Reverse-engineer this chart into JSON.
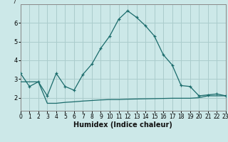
{
  "xlabel": "Humidex (Indice chaleur)",
  "bg_color": "#cce8e8",
  "grid_color": "#aacccc",
  "line_color": "#1a6b6b",
  "line1_x": [
    0,
    1,
    2,
    3,
    4,
    5,
    6,
    7,
    8,
    9,
    10,
    11,
    12,
    13,
    14,
    15,
    16,
    17,
    18,
    19,
    20,
    21,
    22,
    23
  ],
  "line1_y": [
    3.3,
    2.6,
    2.85,
    2.1,
    3.3,
    2.6,
    2.4,
    3.25,
    3.8,
    4.65,
    5.3,
    6.2,
    6.65,
    6.3,
    5.85,
    5.3,
    4.3,
    3.75,
    2.65,
    2.6,
    2.1,
    2.15,
    2.2,
    2.1
  ],
  "line2_x": [
    0,
    1,
    2,
    3,
    4,
    5,
    6,
    7,
    8,
    9,
    10,
    11,
    12,
    13,
    14,
    15,
    16,
    17,
    18,
    19,
    20,
    21,
    22,
    23
  ],
  "line2_y": [
    2.85,
    2.85,
    2.85,
    1.7,
    1.7,
    1.75,
    1.78,
    1.82,
    1.85,
    1.88,
    1.9,
    1.9,
    1.92,
    1.93,
    1.94,
    1.95,
    1.96,
    1.97,
    1.97,
    1.97,
    2.0,
    2.1,
    2.1,
    2.1
  ],
  "xlim": [
    0,
    23
  ],
  "ylim": [
    1.3,
    7.0
  ],
  "yticks": [
    2,
    3,
    4,
    5,
    6
  ],
  "xticks": [
    0,
    1,
    2,
    3,
    4,
    5,
    6,
    7,
    8,
    9,
    10,
    11,
    12,
    13,
    14,
    15,
    16,
    17,
    18,
    19,
    20,
    21,
    22,
    23
  ],
  "spine_color": "#888888",
  "tick_fontsize": 5.5,
  "xlabel_fontsize": 7
}
